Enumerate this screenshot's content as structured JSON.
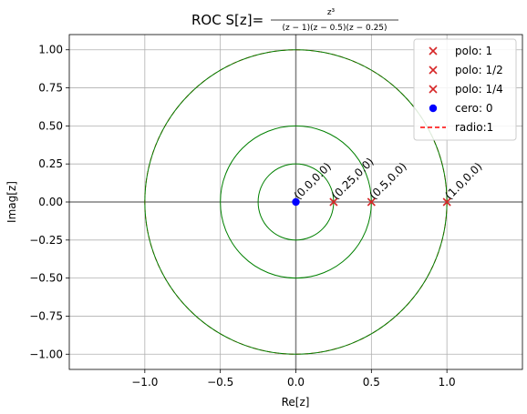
{
  "chart_data": {
    "type": "scatter",
    "title_prefix": "ROC S[z]=",
    "title_numerator": "z³",
    "title_denominator": "(z − 1)(z − 0.5)(z − 0.25)",
    "xlabel": "Re[z]",
    "ylabel": "Imag[z]",
    "xlim": [
      -1.5,
      1.5
    ],
    "ylim": [
      -1.1,
      1.1
    ],
    "xticks": [
      -1.0,
      -0.5,
      0.0,
      0.5,
      1.0
    ],
    "xtick_labels": [
      "−1.0",
      "−0.5",
      "0.0",
      "0.5",
      "1.0"
    ],
    "yticks": [
      -1.0,
      -0.75,
      -0.5,
      -0.25,
      0.0,
      0.25,
      0.5,
      0.75,
      1.0
    ],
    "ytick_labels": [
      "−1.00",
      "−0.75",
      "−0.50",
      "−0.25",
      "0.00",
      "0.25",
      "0.50",
      "0.75",
      "1.00"
    ],
    "grid": true,
    "legend_position": "top-right",
    "series": [
      {
        "name": "polo: 1",
        "marker": "x",
        "color": "#d62728",
        "points": [
          [
            1.0,
            0.0
          ]
        ]
      },
      {
        "name": "polo: 1/2",
        "marker": "x",
        "color": "#d62728",
        "points": [
          [
            0.5,
            0.0
          ]
        ]
      },
      {
        "name": "polo: 1/4",
        "marker": "x",
        "color": "#d62728",
        "points": [
          [
            0.25,
            0.0
          ]
        ]
      },
      {
        "name": "cero: 0",
        "marker": "o",
        "color": "#0000ff",
        "points": [
          [
            0.0,
            0.0
          ]
        ]
      }
    ],
    "circles": [
      {
        "radius": 1.0,
        "color": "#ff0000",
        "style": "dashed",
        "name": "radio:1",
        "in_legend": true
      },
      {
        "radius": 1.0,
        "color": "#008000",
        "style": "solid",
        "in_legend": false
      },
      {
        "radius": 0.5,
        "color": "#008000",
        "style": "solid",
        "in_legend": false
      },
      {
        "radius": 0.25,
        "color": "#008000",
        "style": "solid",
        "in_legend": false
      }
    ],
    "point_annotations": [
      {
        "x": 0.0,
        "y": 0.0,
        "text": "(0.0,0.0)"
      },
      {
        "x": 0.25,
        "y": 0.0,
        "text": "(0.25,0.0)"
      },
      {
        "x": 0.5,
        "y": 0.0,
        "text": "(0.5,0.0)"
      },
      {
        "x": 1.0,
        "y": 0.0,
        "text": "(1.0,0.0)"
      }
    ]
  }
}
